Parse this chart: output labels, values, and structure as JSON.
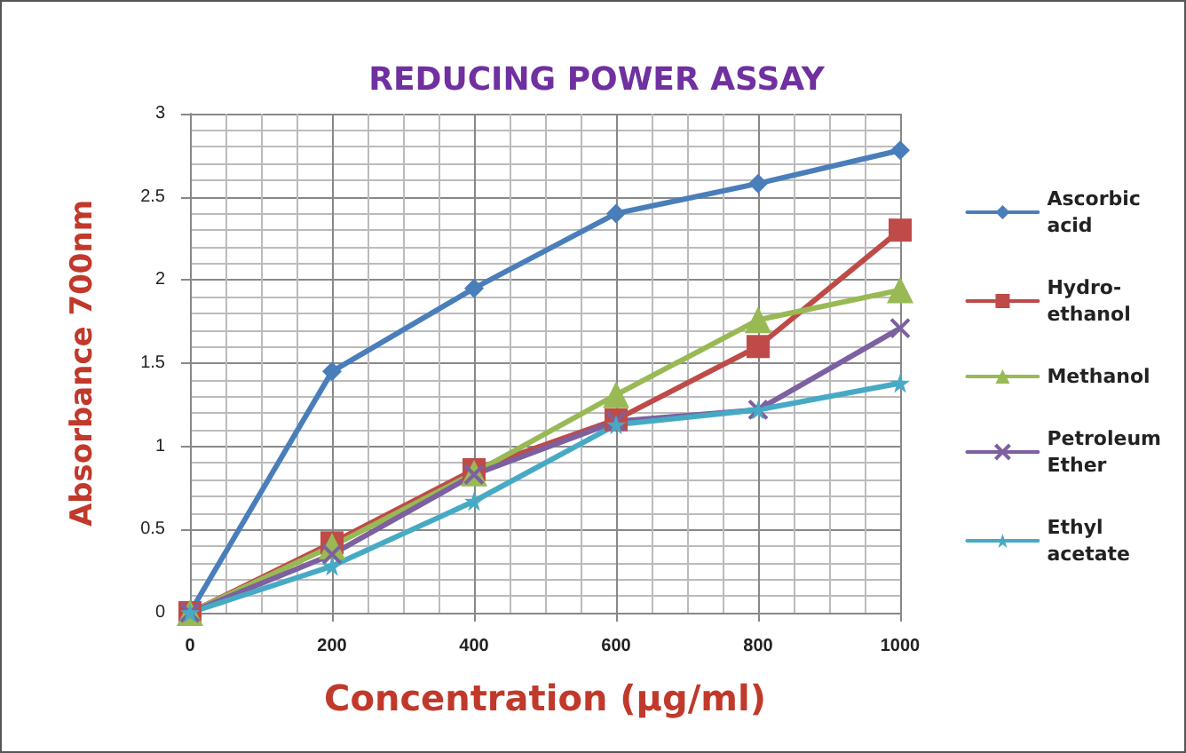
{
  "chart_data": {
    "type": "line",
    "title": "REDUCING POWER ASSAY",
    "xlabel": "Concentration (µg/ml)",
    "ylabel": "Absorbance 700nm",
    "x": [
      0,
      200,
      400,
      600,
      800,
      1000
    ],
    "series": [
      {
        "name": "Ascorbic acid",
        "color": "#4a7ebb",
        "marker": "diamond",
        "values": [
          0,
          1.45,
          1.95,
          2.4,
          2.58,
          2.78
        ]
      },
      {
        "name": "Hydro-ethanol",
        "color": "#be4b48",
        "marker": "square",
        "values": [
          0,
          0.42,
          0.86,
          1.16,
          1.6,
          2.3
        ]
      },
      {
        "name": "Methanol",
        "color": "#98b954",
        "marker": "triangle",
        "values": [
          0,
          0.4,
          0.84,
          1.31,
          1.76,
          1.94
        ]
      },
      {
        "name": "Petroleum Ether",
        "color": "#7d60a0",
        "marker": "cross",
        "values": [
          0,
          0.35,
          0.83,
          1.15,
          1.22,
          1.71
        ]
      },
      {
        "name": "Ethyl acetate",
        "color": "#46aac5",
        "marker": "star",
        "values": [
          0,
          0.28,
          0.67,
          1.13,
          1.22,
          1.38
        ]
      }
    ],
    "xlim": [
      0,
      1000
    ],
    "xticks": [
      0,
      200,
      400,
      600,
      800,
      1000
    ],
    "ylim": [
      0,
      3
    ],
    "yticks": [
      0,
      0.5,
      1,
      1.5,
      2,
      2.5,
      3
    ],
    "grid": true,
    "legend": "right",
    "line_style": "solid"
  }
}
